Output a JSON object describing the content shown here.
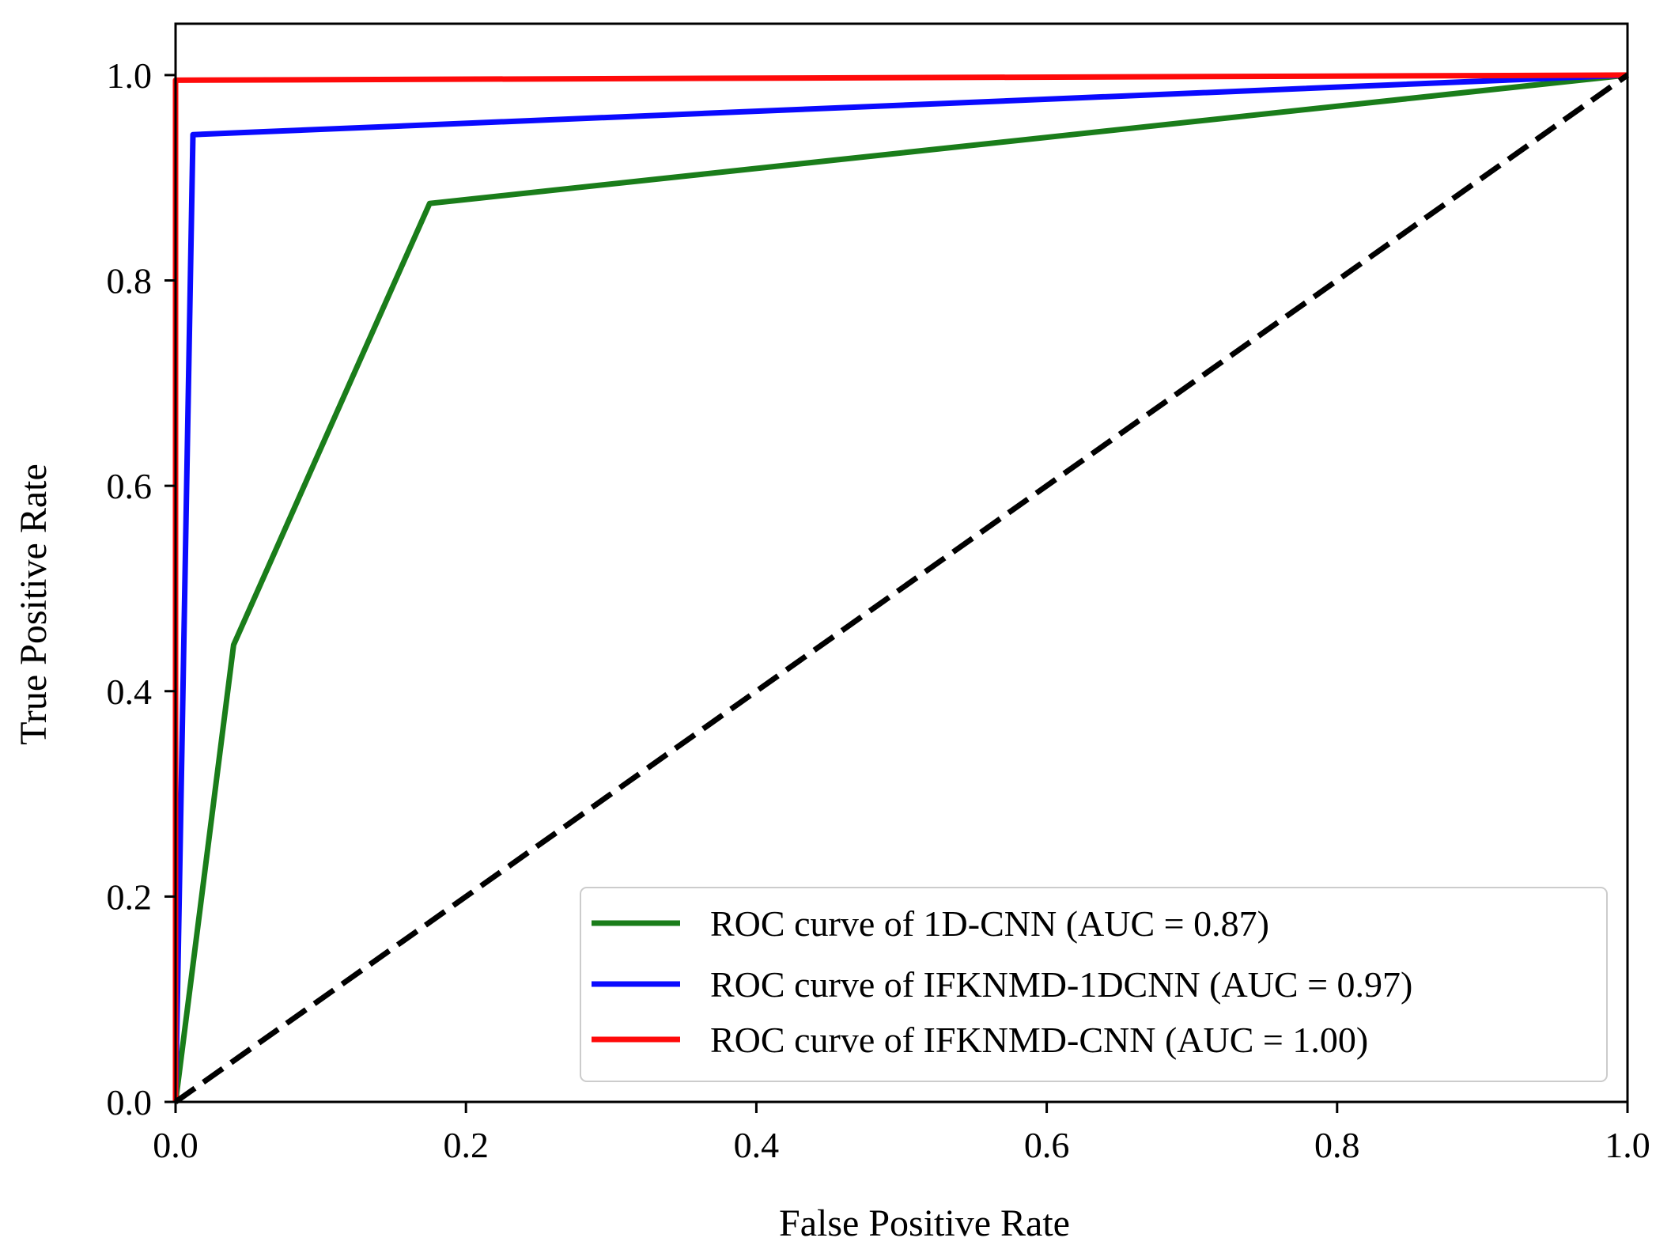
{
  "chart_data": {
    "type": "line",
    "title": "",
    "xlabel": "False Positive Rate",
    "ylabel": "True Positive Rate",
    "xlim": [
      0.0,
      1.0
    ],
    "ylim": [
      0.0,
      1.05
    ],
    "xticks": [
      "0.0",
      "0.2",
      "0.4",
      "0.6",
      "0.8",
      "1.0"
    ],
    "yticks": [
      "0.0",
      "0.2",
      "0.4",
      "0.6",
      "0.8",
      "1.0"
    ],
    "xtick_values": [
      0.0,
      0.2,
      0.4,
      0.6,
      0.8,
      1.0
    ],
    "ytick_values": [
      0.0,
      0.2,
      0.4,
      0.6,
      0.8,
      1.0
    ],
    "grid": false,
    "legend_position": "lower-right",
    "series": [
      {
        "name": "ROC curve of 1D-CNN (AUC = 0.87)",
        "color": "#1a7d1a",
        "style": "solid",
        "x": [
          0.0,
          0.04,
          0.12,
          0.175,
          1.0
        ],
        "y": [
          0.0,
          0.445,
          0.7,
          0.875,
          1.0
        ]
      },
      {
        "name": "ROC curve of IFKNMD-1DCNN (AUC = 0.97)",
        "color": "#0a0aff",
        "style": "solid",
        "x": [
          0.0,
          0.012,
          1.0
        ],
        "y": [
          0.0,
          0.942,
          1.0
        ]
      },
      {
        "name": "ROC curve of IFKNMD-CNN (AUC = 1.00)",
        "color": "#ff0a0a",
        "style": "solid",
        "x": [
          0.0,
          0.0,
          1.0
        ],
        "y": [
          0.0,
          0.995,
          1.0
        ]
      },
      {
        "name": "chance",
        "color": "#000000",
        "style": "dashed",
        "x": [
          0.0,
          1.0
        ],
        "y": [
          0.0,
          1.0
        ]
      }
    ],
    "legend_entries": [
      {
        "label": "ROC curve of 1D-CNN (AUC = 0.87)",
        "color": "#1a7d1a"
      },
      {
        "label": "ROC curve of IFKNMD-1DCNN (AUC = 0.97)",
        "color": "#0a0aff"
      },
      {
        "label": "ROC curve of IFKNMD-CNN (AUC = 1.00)",
        "color": "#ff0a0a"
      }
    ]
  }
}
